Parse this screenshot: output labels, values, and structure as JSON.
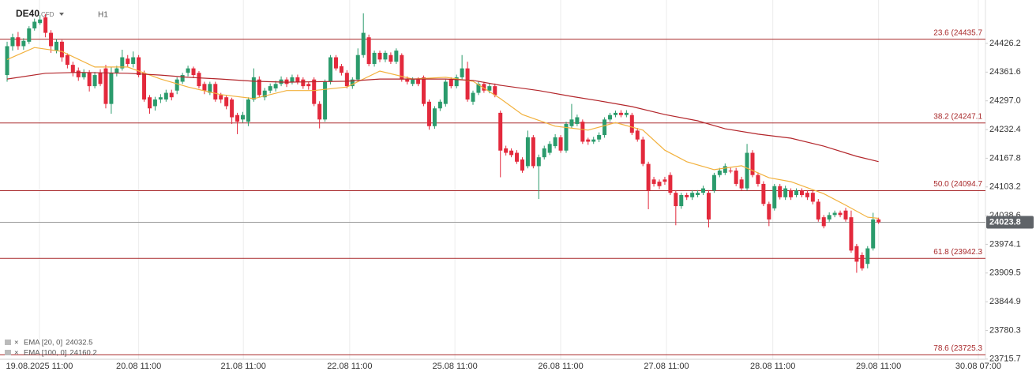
{
  "chart_data": {
    "type": "candlestick",
    "symbol": "DE40",
    "instrument": "CFD",
    "timeframe": "H1",
    "up_color": "#2b9b6c",
    "down_color": "#e3293c",
    "open": [
      24355,
      24420,
      24440,
      24420,
      24430,
      24460,
      24472,
      24485,
      24450,
      24410,
      24430,
      24400,
      24378,
      24365,
      24350,
      24360,
      24330,
      24360,
      24370,
      24290,
      24360,
      24370,
      24392,
      24380,
      24395,
      24360,
      24305,
      24285,
      24300,
      24300,
      24315,
      24320,
      24340,
      24360,
      24370,
      24360,
      24335,
      24315,
      24335,
      24310,
      24305,
      24300,
      24265,
      24255,
      24250,
      24300,
      24345,
      24305,
      24320,
      24325,
      24335,
      24345,
      24340,
      24350,
      24345,
      24335,
      24345,
      24290,
      24255,
      24340,
      24395,
      24375,
      24360,
      24330,
      24345,
      24400,
      24440,
      24380,
      24405,
      24390,
      24400,
      24385,
      24400,
      24345,
      24335,
      24345,
      24350,
      24295,
      24240,
      24280,
      24290,
      24345,
      24330,
      24350,
      24370,
      24295,
      24315,
      24335,
      24320,
      24330,
      24270,
      24190,
      24185,
      24180,
      24165,
      24150,
      24215,
      24150,
      24170,
      24180,
      24195,
      24215,
      24185,
      24240,
      24245,
      24250,
      24210,
      24205,
      24210,
      24220,
      24255,
      24265,
      24270,
      24265,
      24265,
      24230,
      24210,
      24155,
      24120,
      24115,
      24120,
      24130,
      24090,
      24060,
      24085,
      24080,
      24085,
      24090,
      24090,
      24095,
      24130,
      24135,
      24140,
      24140,
      24120,
      24100,
      24180,
      24130,
      24110,
      24065,
      24055,
      24105,
      24080,
      24095,
      24085,
      24095,
      24090,
      24090,
      24070,
      24035,
      24030,
      24040,
      24045,
      24050,
      24035,
      23970,
      23950,
      23930,
      23965,
      24030
    ],
    "high": [
      24430,
      24448,
      24452,
      24438,
      24465,
      24482,
      24490,
      24492,
      24456,
      24436,
      24434,
      24404,
      24385,
      24372,
      24368,
      24366,
      24362,
      24368,
      24378,
      24372,
      24376,
      24412,
      24400,
      24408,
      24400,
      24365,
      24310,
      24306,
      24312,
      24322,
      24322,
      24350,
      24360,
      24376,
      24374,
      24364,
      24340,
      24340,
      24340,
      24315,
      24310,
      24304,
      24270,
      24272,
      24305,
      24370,
      24352,
      24326,
      24336,
      24342,
      24352,
      24350,
      24356,
      24356,
      24350,
      24340,
      24350,
      24296,
      24345,
      24400,
      24400,
      24380,
      24366,
      24350,
      24415,
      24494,
      24446,
      24410,
      24410,
      24410,
      24406,
      24415,
      24404,
      24352,
      24350,
      24350,
      24354,
      24300,
      24285,
      24300,
      24345,
      24350,
      24356,
      24400,
      24385,
      24320,
      24340,
      24340,
      24336,
      24336,
      24275,
      24196,
      24190,
      24186,
      24170,
      24230,
      24220,
      24176,
      24196,
      24206,
      24222,
      24220,
      24250,
      24290,
      24266,
      24255,
      24214,
      24216,
      24226,
      24260,
      24270,
      24275,
      24276,
      24276,
      24270,
      24236,
      24216,
      24160,
      24126,
      24120,
      24126,
      24136,
      24096,
      24090,
      24090,
      24096,
      24096,
      24106,
      24096,
      24135,
      24146,
      24156,
      24146,
      24146,
      24126,
      24200,
      24186,
      24136,
      24116,
      24070,
      24110,
      24110,
      24106,
      24100,
      24100,
      24100,
      24096,
      24096,
      24076,
      24040,
      24046,
      24050,
      24050,
      24056,
      24050,
      23975,
      23956,
      23970,
      24045,
      24034
    ],
    "low": [
      24340,
      24410,
      24412,
      24412,
      24425,
      24455,
      24468,
      24440,
      24405,
      24404,
      24385,
      24370,
      24352,
      24342,
      24345,
      24318,
      24325,
      24330,
      24280,
      24268,
      24352,
      24365,
      24374,
      24372,
      24350,
      24295,
      24268,
      24275,
      24292,
      24295,
      24298,
      24312,
      24335,
      24352,
      24348,
      24325,
      24312,
      24310,
      24295,
      24292,
      24278,
      24245,
      24222,
      24248,
      24240,
      24295,
      24305,
      24298,
      24314,
      24318,
      24330,
      24328,
      24334,
      24334,
      24324,
      24322,
      24285,
      24235,
      24250,
      24334,
      24365,
      24354,
      24325,
      24324,
      24340,
      24394,
      24375,
      24374,
      24384,
      24384,
      24380,
      24380,
      24340,
      24334,
      24330,
      24330,
      24285,
      24232,
      24234,
      24274,
      24284,
      24325,
      24325,
      24345,
      24295,
      24288,
      24310,
      24315,
      24314,
      24305,
      24125,
      24174,
      24170,
      24155,
      24135,
      24145,
      24145,
      24076,
      24165,
      24175,
      24190,
      24180,
      24180,
      24235,
      24240,
      24200,
      24198,
      24200,
      24204,
      24214,
      24250,
      24260,
      24260,
      24260,
      24220,
      24205,
      24150,
      24053,
      24104,
      24098,
      24108,
      24085,
      24017,
      24054,
      24074,
      24074,
      24080,
      24085,
      24012,
      24090,
      24125,
      24130,
      24134,
      24105,
      24095,
      24095,
      24125,
      24104,
      24060,
      24015,
      24050,
      24075,
      24074,
      24074,
      24080,
      24080,
      24074,
      24064,
      24025,
      24010,
      24025,
      24035,
      24035,
      24025,
      23955,
      23910,
      23915,
      23920,
      23960,
      24020
    ],
    "close": [
      24420,
      24440,
      24420,
      24432,
      24460,
      24475,
      24480,
      24450,
      24420,
      24430,
      24395,
      24378,
      24360,
      24350,
      24360,
      24330,
      24355,
      24335,
      24290,
      24360,
      24370,
      24395,
      24380,
      24395,
      24355,
      24300,
      24280,
      24300,
      24305,
      24315,
      24305,
      24345,
      24355,
      24370,
      24355,
      24330,
      24320,
      24335,
      24300,
      24300,
      24285,
      24260,
      24250,
      24265,
      24300,
      24350,
      24310,
      24320,
      24330,
      24335,
      24345,
      24335,
      24350,
      24340,
      24330,
      24330,
      24290,
      24255,
      24340,
      24395,
      24370,
      24360,
      24330,
      24345,
      24400,
      24450,
      24380,
      24405,
      24390,
      24405,
      24385,
      24410,
      24345,
      24340,
      24345,
      24335,
      24290,
      24240,
      24280,
      24295,
      24340,
      24330,
      24350,
      24370,
      24300,
      24315,
      24335,
      24320,
      24330,
      24310,
      24185,
      24180,
      24175,
      24160,
      24140,
      24215,
      24150,
      24170,
      24190,
      24200,
      24215,
      24185,
      24245,
      24255,
      24260,
      24205,
      24205,
      24210,
      24220,
      24255,
      24265,
      24270,
      24265,
      24270,
      24225,
      24210,
      24155,
      24095,
      24110,
      24105,
      24115,
      24090,
      24060,
      24085,
      24080,
      24090,
      24090,
      24100,
      24030,
      24130,
      24140,
      24150,
      24138,
      24110,
      24100,
      24180,
      24130,
      24110,
      24065,
      24030,
      24105,
      24080,
      24100,
      24080,
      24095,
      24085,
      24080,
      24070,
      24030,
      24015,
      24040,
      24045,
      24040,
      24030,
      23960,
      23935,
      23920,
      23965,
      24030,
      24023.8
    ],
    "series": [
      {
        "name": "EMA [20, 0]",
        "color": "#f2b13d",
        "legend_value": 24032.5,
        "x": [
          0,
          5,
          10,
          16,
          22,
          28,
          33,
          39,
          45,
          51,
          56,
          62,
          68,
          74,
          80,
          85,
          90,
          94,
          100,
          106,
          111,
          116,
          120,
          124,
          129,
          134,
          139,
          143,
          149,
          153,
          157,
          159
        ],
        "values": [
          24390,
          24417,
          24408,
          24373,
          24373,
          24346,
          24328,
          24311,
          24302,
          24320,
          24320,
          24328,
          24364,
          24346,
          24350,
          24341,
          24302,
          24266,
          24240,
          24231,
          24248,
          24231,
          24186,
          24160,
          24142,
          24151,
          24124,
          24115,
          24088,
          24062,
          24035,
          24032.5
        ]
      },
      {
        "name": "EMA [100, 0]",
        "color": "#b3262b",
        "legend_value": 24160.2,
        "x": [
          0,
          7,
          13,
          22,
          28,
          33,
          39,
          45,
          51,
          62,
          68,
          74,
          80,
          85,
          90,
          97,
          103,
          108,
          114,
          120,
          126,
          131,
          137,
          143,
          149,
          155,
          159
        ],
        "values": [
          24346,
          24359,
          24361,
          24359,
          24355,
          24350,
          24346,
          24341,
          24339,
          24341,
          24346,
          24346,
          24346,
          24343,
          24332,
          24320,
          24307,
          24297,
          24284,
          24266,
          24252,
          24234,
          24222,
          24213,
          24195,
          24172,
          24160.2
        ]
      }
    ],
    "levels": [
      {
        "value": 24435.7,
        "label": "23.6 (24435.7"
      },
      {
        "value": 24247.1,
        "label": "38.2 (24247.1"
      },
      {
        "value": 24094.7,
        "label": "50.0 (24094.7"
      },
      {
        "value": 23942.3,
        "label": "61.8 (23942.3"
      },
      {
        "value": 23725.3,
        "label": "78.6 (23725.3"
      }
    ],
    "level_color": "#a8282a",
    "last_price": 24023.8,
    "xlim": [
      -1.3,
      178.5
    ],
    "xticks": [
      {
        "value": 5.9,
        "label": "19.08.2025 11:00"
      },
      {
        "value": 24,
        "label": "20.08 11:00"
      },
      {
        "value": 43.1,
        "label": "21.08 11:00"
      },
      {
        "value": 62.5,
        "label": "22.08 11:00"
      },
      {
        "value": 81.7,
        "label": "25.08 11:00"
      },
      {
        "value": 101,
        "label": "26.08 11:00"
      },
      {
        "value": 120.3,
        "label": "27.08 11:00"
      },
      {
        "value": 139.7,
        "label": "28.08 11:00"
      },
      {
        "value": 159,
        "label": "29.08 11:00"
      },
      {
        "value": 177.2,
        "label": "30.08 07:00"
      }
    ],
    "ylim": [
      23715.4,
      24523.9
    ],
    "yticks": [
      24426.2,
      24361.6,
      {
        "value": 24297,
        "label": "24297.0"
      },
      24232.4,
      24167.8,
      24103.2,
      24038.6,
      23974.1,
      23909.5,
      23844.9,
      23780.3,
      23715.7
    ],
    "grid": true
  }
}
